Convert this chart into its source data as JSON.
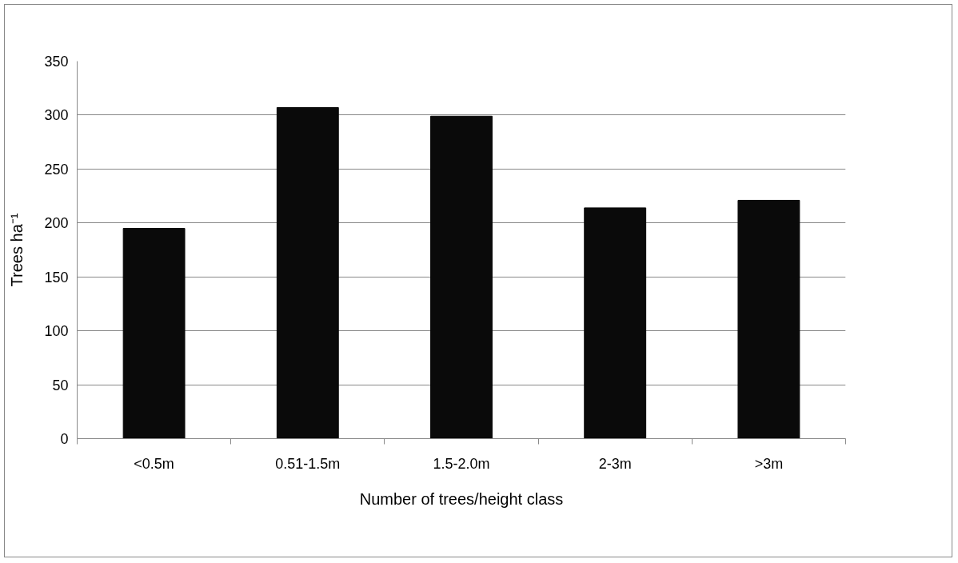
{
  "chart_data": {
    "type": "bar",
    "xlabel": "Number of trees/height class",
    "ylabel": "Trees ha⁻¹",
    "categories": [
      "<0.5m",
      "0.51-1.5m",
      "1.5-2.0m",
      "2-3m",
      ">3m"
    ],
    "values": [
      195,
      307,
      299,
      214,
      221
    ],
    "color": "#0a0a0a",
    "ylim": [
      0,
      350
    ],
    "yticks": [
      0,
      50,
      100,
      150,
      200,
      250,
      300,
      350
    ],
    "grid": "y"
  }
}
